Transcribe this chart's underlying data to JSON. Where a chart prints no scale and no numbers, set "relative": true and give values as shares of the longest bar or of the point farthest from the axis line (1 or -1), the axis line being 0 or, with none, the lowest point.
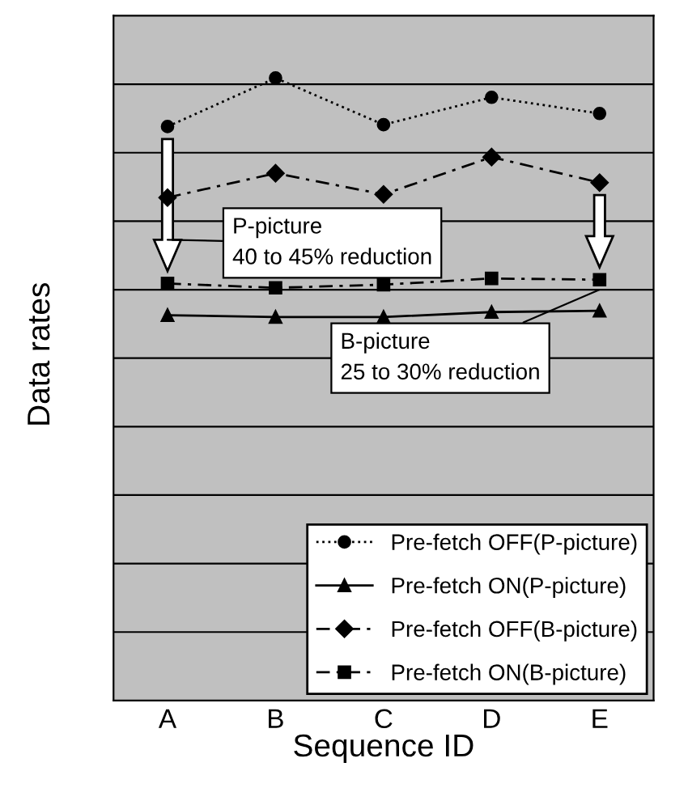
{
  "chart_data": {
    "type": "line",
    "relative": true,
    "xlabel": "Sequence ID",
    "ylabel": "Data rates",
    "categories": [
      "A",
      "B",
      "C",
      "D",
      "E"
    ],
    "grid": "y",
    "legend": "bottom right",
    "series": [
      {
        "name": "Pre-fetch OFF(P-picture)",
        "color": "#000000",
        "marker": "circle",
        "line_style": "dotted",
        "values": [
          0.922,
          1,
          0.925,
          0.969,
          0.943
        ]
      },
      {
        "name": "Pre-fetch ON(P-picture)",
        "color": "#000000",
        "marker": "triangle",
        "line_style": "solid",
        "values": [
          0.619,
          0.616,
          0.616,
          0.624,
          0.626
        ]
      },
      {
        "name": "Pre-fetch OFF(B-picture)",
        "color": "#000000",
        "marker": "diamond",
        "line_style": "dashed",
        "values": [
          0.808,
          0.847,
          0.813,
          0.873,
          0.832
        ]
      },
      {
        "name": "Pre-fetch ON(B-picture)",
        "color": "#000000",
        "marker": "square",
        "line_style": "dashed",
        "values": [
          0.67,
          0.663,
          0.668,
          0.678,
          0.676
        ]
      }
    ],
    "annotations": [
      "P-picture\n40 to 45% reduction",
      "B-picture\n25 to 30% reduction"
    ]
  }
}
